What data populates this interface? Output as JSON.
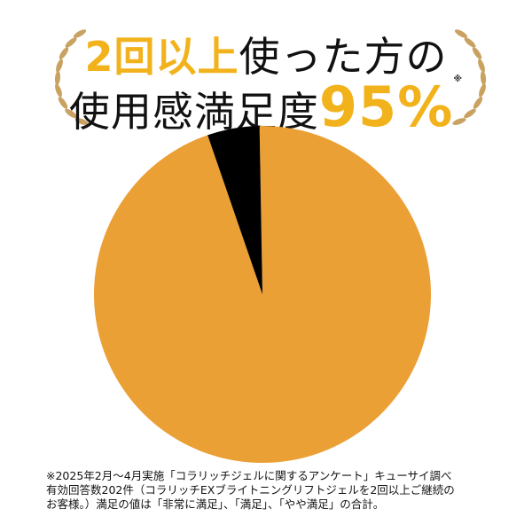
{
  "headline": {
    "line1_accent": "2回以上",
    "line1_rest": "使った方の",
    "line2_text": "使用感満足度",
    "line2_value": "95%",
    "line2_mark": "※"
  },
  "footnote": [
    "※2025年2月～4月実施「コラリッチジェルに関するアンケート」キューサイ調べ",
    "有効回答数202件（コラリッチEXブライトニングリフトジェルを2回以上ご継続の",
    "お客様。）満足の値は「非常に満足」、「満足」、「やや満足」の合計。"
  ],
  "colors": {
    "accent": "#f2b21b",
    "satisfied": "#eba035",
    "other": "#000000",
    "laurel": "#c9a261"
  },
  "chart_data": {
    "type": "pie",
    "title": "",
    "slices": [
      {
        "label": "",
        "value": 95,
        "color": "#eba035"
      },
      {
        "label": "",
        "value": 5,
        "color": "#000000"
      }
    ]
  }
}
